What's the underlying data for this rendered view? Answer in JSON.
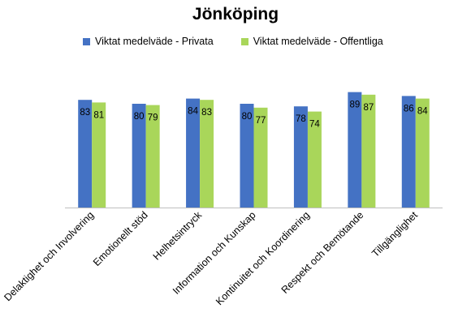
{
  "chart_data": {
    "type": "bar",
    "title": "Jönköping",
    "categories": [
      "Delaktighet och Involvering",
      "Emotionellt stöd",
      "Helhetsintryck",
      "Information och Kunskap",
      "Kontinuitet och Koordinering",
      "Respekt och Bemötande",
      "Tillgänglighet"
    ],
    "series": [
      {
        "name": "Viktat medelväde - Privata",
        "values": [
          83,
          80,
          84,
          80,
          78,
          89,
          86
        ],
        "color": "#4472c4"
      },
      {
        "name": "Viktat medelväde - Offentliga",
        "values": [
          81,
          79,
          83,
          77,
          74,
          87,
          84
        ],
        "color": "#a9d65a"
      }
    ],
    "ylim": [
      0,
      100
    ],
    "grid": false,
    "legend_position": "top",
    "data_labels": true
  }
}
